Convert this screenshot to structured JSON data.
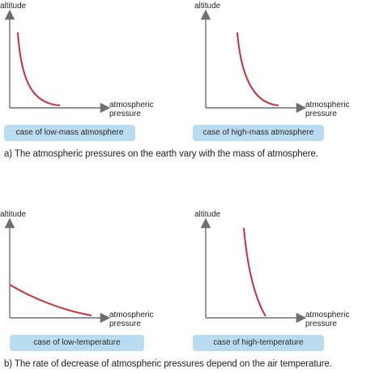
{
  "colors": {
    "axis": "#6e6e6e",
    "curve": "#c8323c",
    "box_bg": "#b9dcf0",
    "box_text": "#2a2a2a"
  },
  "axes": {
    "y_label": "altitude",
    "x_label_line1": "atmospheric",
    "x_label_line2": "pressure"
  },
  "sections": [
    {
      "caption": "a) The atmospheric pressures on the earth vary with the mass of atmosphere.",
      "plots": [
        {
          "case_label": "case of low-mass atmosphere"
        },
        {
          "case_label": "case of high-mass atmosphere"
        }
      ]
    },
    {
      "caption": "b) The rate of decrease of atmospheric pressures depend on the air temperature.",
      "plots": [
        {
          "case_label": "case of low-temperature"
        },
        {
          "case_label": "case of high-temperature"
        }
      ]
    }
  ]
}
